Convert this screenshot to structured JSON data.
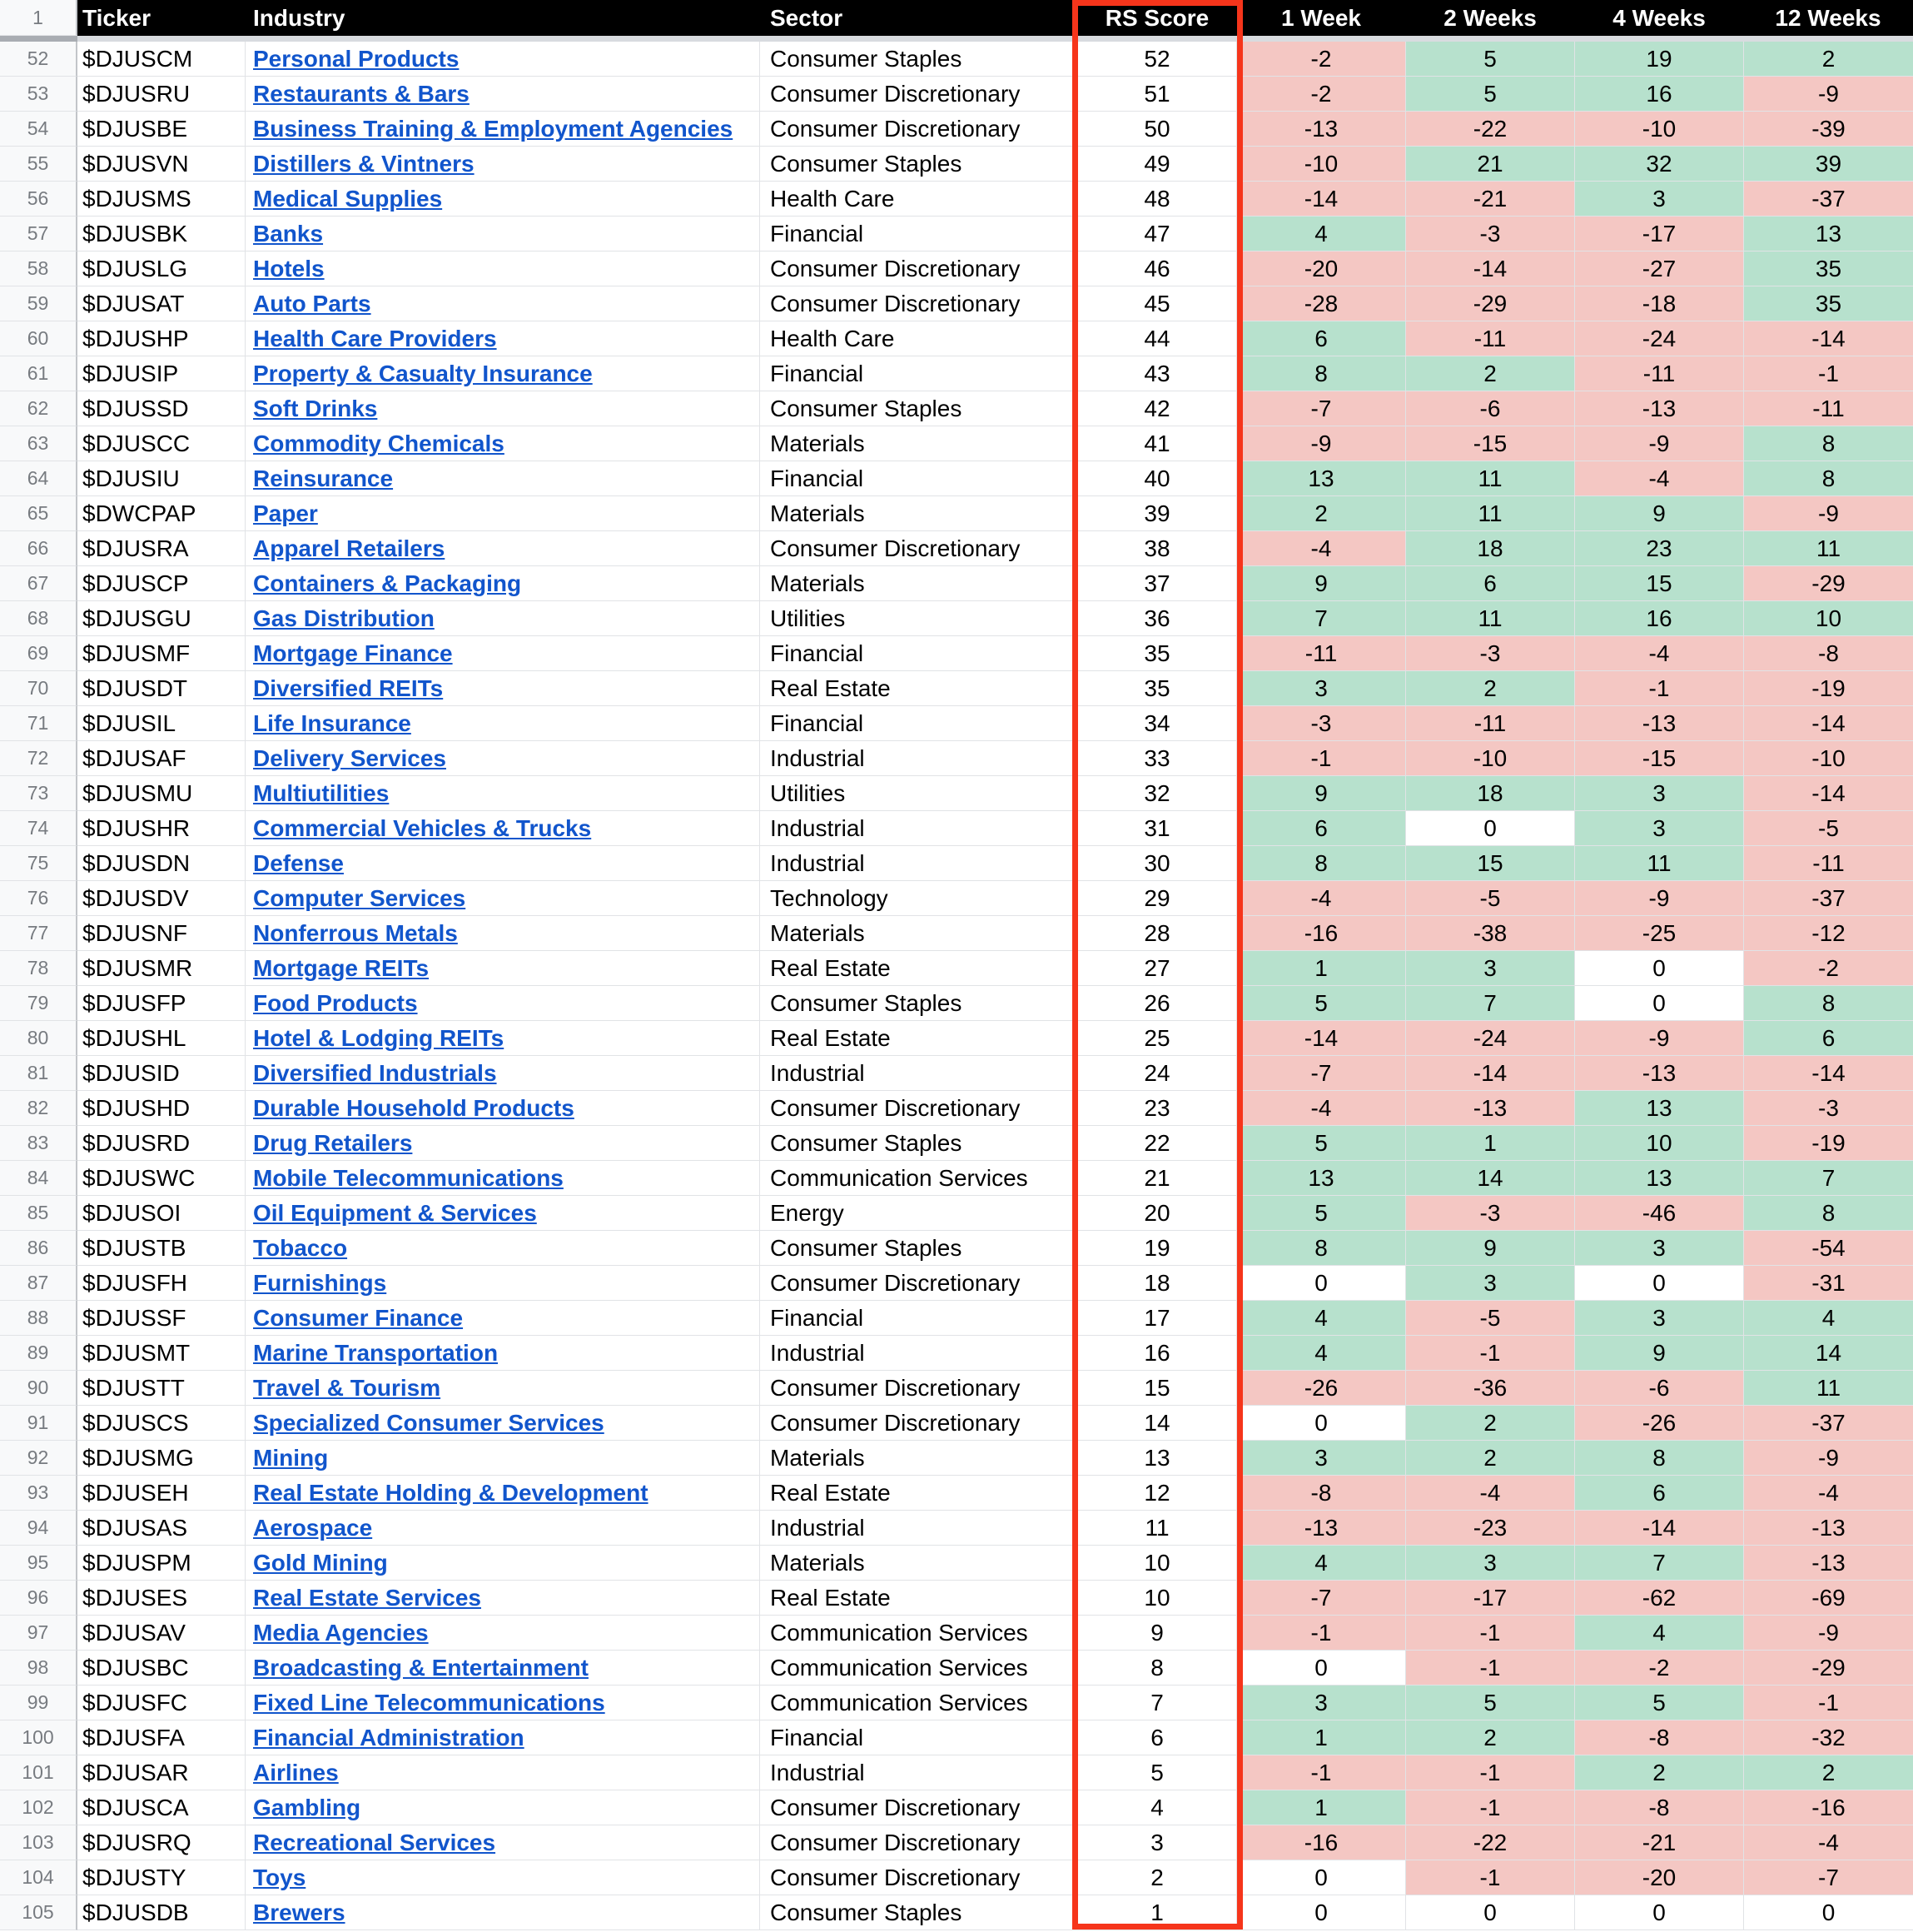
{
  "header": {
    "corner_row_number": "1",
    "columns": [
      {
        "key": "ticker",
        "label": "Ticker"
      },
      {
        "key": "industry",
        "label": "Industry"
      },
      {
        "key": "sector",
        "label": "Sector"
      },
      {
        "key": "rs",
        "label": "RS Score"
      },
      {
        "key": "w1",
        "label": "1 Week"
      },
      {
        "key": "w2",
        "label": "2 Weeks"
      },
      {
        "key": "w4",
        "label": "4 Weeks"
      },
      {
        "key": "w12",
        "label": "12 Weeks"
      }
    ]
  },
  "colors": {
    "positive_bg": "#b7e1cd",
    "negative_bg": "#f4c7c3",
    "zero_bg": "#ffffff",
    "link": "#1155cc",
    "rs_outline": "#f6351b",
    "gridline": "#e1e3e6"
  },
  "table": {
    "rows": [
      {
        "row": 52,
        "ticker": "$DJUSCM",
        "industry": "Personal Products",
        "sector": "Consumer Staples",
        "rs": 52,
        "w1": -2,
        "w2": 5,
        "w4": 19,
        "w12": 2
      },
      {
        "row": 53,
        "ticker": "$DJUSRU",
        "industry": "Restaurants & Bars",
        "sector": "Consumer Discretionary",
        "rs": 51,
        "w1": -2,
        "w2": 5,
        "w4": 16,
        "w12": -9
      },
      {
        "row": 54,
        "ticker": "$DJUSBE",
        "industry": "Business Training & Employment Agencies",
        "sector": "Consumer Discretionary",
        "rs": 50,
        "w1": -13,
        "w2": -22,
        "w4": -10,
        "w12": -39
      },
      {
        "row": 55,
        "ticker": "$DJUSVN",
        "industry": "Distillers & Vintners",
        "sector": "Consumer Staples",
        "rs": 49,
        "w1": -10,
        "w2": 21,
        "w4": 32,
        "w12": 39
      },
      {
        "row": 56,
        "ticker": "$DJUSMS",
        "industry": "Medical Supplies",
        "sector": "Health Care",
        "rs": 48,
        "w1": -14,
        "w2": -21,
        "w4": 3,
        "w12": -37
      },
      {
        "row": 57,
        "ticker": "$DJUSBK",
        "industry": "Banks",
        "sector": "Financial",
        "rs": 47,
        "w1": 4,
        "w2": -3,
        "w4": -17,
        "w12": 13
      },
      {
        "row": 58,
        "ticker": "$DJUSLG",
        "industry": "Hotels",
        "sector": "Consumer Discretionary",
        "rs": 46,
        "w1": -20,
        "w2": -14,
        "w4": -27,
        "w12": 35
      },
      {
        "row": 59,
        "ticker": "$DJUSAT",
        "industry": "Auto Parts",
        "sector": "Consumer Discretionary",
        "rs": 45,
        "w1": -28,
        "w2": -29,
        "w4": -18,
        "w12": 35
      },
      {
        "row": 60,
        "ticker": "$DJUSHP",
        "industry": "Health Care Providers",
        "sector": "Health Care",
        "rs": 44,
        "w1": 6,
        "w2": -11,
        "w4": -24,
        "w12": -14
      },
      {
        "row": 61,
        "ticker": "$DJUSIP",
        "industry": "Property & Casualty Insurance",
        "sector": "Financial",
        "rs": 43,
        "w1": 8,
        "w2": 2,
        "w4": -11,
        "w12": -1
      },
      {
        "row": 62,
        "ticker": "$DJUSSD",
        "industry": "Soft Drinks",
        "sector": "Consumer Staples",
        "rs": 42,
        "w1": -7,
        "w2": -6,
        "w4": -13,
        "w12": -11
      },
      {
        "row": 63,
        "ticker": "$DJUSCC",
        "industry": "Commodity Chemicals",
        "sector": "Materials",
        "rs": 41,
        "w1": -9,
        "w2": -15,
        "w4": -9,
        "w12": 8
      },
      {
        "row": 64,
        "ticker": "$DJUSIU",
        "industry": "Reinsurance",
        "sector": "Financial",
        "rs": 40,
        "w1": 13,
        "w2": 11,
        "w4": -4,
        "w12": 8
      },
      {
        "row": 65,
        "ticker": "$DWCPAP",
        "industry": "Paper",
        "sector": "Materials",
        "rs": 39,
        "w1": 2,
        "w2": 11,
        "w4": 9,
        "w12": -9
      },
      {
        "row": 66,
        "ticker": "$DJUSRA",
        "industry": "Apparel Retailers",
        "sector": "Consumer Discretionary",
        "rs": 38,
        "w1": -4,
        "w2": 18,
        "w4": 23,
        "w12": 11
      },
      {
        "row": 67,
        "ticker": "$DJUSCP",
        "industry": "Containers & Packaging",
        "sector": "Materials",
        "rs": 37,
        "w1": 9,
        "w2": 6,
        "w4": 15,
        "w12": -29
      },
      {
        "row": 68,
        "ticker": "$DJUSGU",
        "industry": "Gas Distribution",
        "sector": "Utilities",
        "rs": 36,
        "w1": 7,
        "w2": 11,
        "w4": 16,
        "w12": 10
      },
      {
        "row": 69,
        "ticker": "$DJUSMF",
        "industry": "Mortgage Finance",
        "sector": "Financial",
        "rs": 35,
        "w1": -11,
        "w2": -3,
        "w4": -4,
        "w12": -8
      },
      {
        "row": 70,
        "ticker": "$DJUSDT",
        "industry": "Diversified REITs",
        "sector": "Real Estate",
        "rs": 35,
        "w1": 3,
        "w2": 2,
        "w4": -1,
        "w12": -19
      },
      {
        "row": 71,
        "ticker": "$DJUSIL",
        "industry": "Life Insurance",
        "sector": "Financial",
        "rs": 34,
        "w1": -3,
        "w2": -11,
        "w4": -13,
        "w12": -14
      },
      {
        "row": 72,
        "ticker": "$DJUSAF",
        "industry": "Delivery Services",
        "sector": "Industrial",
        "rs": 33,
        "w1": -1,
        "w2": -10,
        "w4": -15,
        "w12": -10
      },
      {
        "row": 73,
        "ticker": "$DJUSMU",
        "industry": "Multiutilities",
        "sector": "Utilities",
        "rs": 32,
        "w1": 9,
        "w2": 18,
        "w4": 3,
        "w12": -14
      },
      {
        "row": 74,
        "ticker": "$DJUSHR",
        "industry": "Commercial Vehicles & Trucks",
        "sector": "Industrial",
        "rs": 31,
        "w1": 6,
        "w2": 0,
        "w4": 3,
        "w12": -5
      },
      {
        "row": 75,
        "ticker": "$DJUSDN",
        "industry": "Defense",
        "sector": "Industrial",
        "rs": 30,
        "w1": 8,
        "w2": 15,
        "w4": 11,
        "w12": -11
      },
      {
        "row": 76,
        "ticker": "$DJUSDV",
        "industry": "Computer Services",
        "sector": "Technology",
        "rs": 29,
        "w1": -4,
        "w2": -5,
        "w4": -9,
        "w12": -37
      },
      {
        "row": 77,
        "ticker": "$DJUSNF",
        "industry": "Nonferrous Metals",
        "sector": "Materials",
        "rs": 28,
        "w1": -16,
        "w2": -38,
        "w4": -25,
        "w12": -12
      },
      {
        "row": 78,
        "ticker": "$DJUSMR",
        "industry": "Mortgage REITs",
        "sector": "Real Estate",
        "rs": 27,
        "w1": 1,
        "w2": 3,
        "w4": 0,
        "w12": -2
      },
      {
        "row": 79,
        "ticker": "$DJUSFP",
        "industry": "Food Products",
        "sector": "Consumer Staples",
        "rs": 26,
        "w1": 5,
        "w2": 7,
        "w4": 0,
        "w12": 8
      },
      {
        "row": 80,
        "ticker": "$DJUSHL",
        "industry": "Hotel & Lodging REITs",
        "sector": "Real Estate",
        "rs": 25,
        "w1": -14,
        "w2": -24,
        "w4": -9,
        "w12": 6
      },
      {
        "row": 81,
        "ticker": "$DJUSID",
        "industry": "Diversified Industrials",
        "sector": "Industrial",
        "rs": 24,
        "w1": -7,
        "w2": -14,
        "w4": -13,
        "w12": -14
      },
      {
        "row": 82,
        "ticker": "$DJUSHD",
        "industry": "Durable Household Products",
        "sector": "Consumer Discretionary",
        "rs": 23,
        "w1": -4,
        "w2": -13,
        "w4": 13,
        "w12": -3
      },
      {
        "row": 83,
        "ticker": "$DJUSRD",
        "industry": "Drug Retailers",
        "sector": "Consumer Staples",
        "rs": 22,
        "w1": 5,
        "w2": 1,
        "w4": 10,
        "w12": -19
      },
      {
        "row": 84,
        "ticker": "$DJUSWC",
        "industry": "Mobile Telecommunications",
        "sector": "Communication Services",
        "rs": 21,
        "w1": 13,
        "w2": 14,
        "w4": 13,
        "w12": 7
      },
      {
        "row": 85,
        "ticker": "$DJUSOI",
        "industry": "Oil Equipment & Services",
        "sector": "Energy",
        "rs": 20,
        "w1": 5,
        "w2": -3,
        "w4": -46,
        "w12": 8
      },
      {
        "row": 86,
        "ticker": "$DJUSTB",
        "industry": "Tobacco",
        "sector": "Consumer Staples",
        "rs": 19,
        "w1": 8,
        "w2": 9,
        "w4": 3,
        "w12": -54
      },
      {
        "row": 87,
        "ticker": "$DJUSFH",
        "industry": "Furnishings",
        "sector": "Consumer Discretionary",
        "rs": 18,
        "w1": 0,
        "w2": 3,
        "w4": 0,
        "w12": -31
      },
      {
        "row": 88,
        "ticker": "$DJUSSF",
        "industry": "Consumer Finance",
        "sector": "Financial",
        "rs": 17,
        "w1": 4,
        "w2": -5,
        "w4": 3,
        "w12": 4
      },
      {
        "row": 89,
        "ticker": "$DJUSMT",
        "industry": "Marine Transportation",
        "sector": "Industrial",
        "rs": 16,
        "w1": 4,
        "w2": -1,
        "w4": 9,
        "w12": 14
      },
      {
        "row": 90,
        "ticker": "$DJUSTT",
        "industry": "Travel & Tourism",
        "sector": "Consumer Discretionary",
        "rs": 15,
        "w1": -26,
        "w2": -36,
        "w4": -6,
        "w12": 11
      },
      {
        "row": 91,
        "ticker": "$DJUSCS",
        "industry": "Specialized Consumer Services",
        "sector": "Consumer Discretionary",
        "rs": 14,
        "w1": 0,
        "w2": 2,
        "w4": -26,
        "w12": -37
      },
      {
        "row": 92,
        "ticker": "$DJUSMG",
        "industry": "Mining",
        "sector": "Materials",
        "rs": 13,
        "w1": 3,
        "w2": 2,
        "w4": 8,
        "w12": -9
      },
      {
        "row": 93,
        "ticker": "$DJUSEH",
        "industry": "Real Estate Holding & Development",
        "sector": "Real Estate",
        "rs": 12,
        "w1": -8,
        "w2": -4,
        "w4": 6,
        "w12": -4
      },
      {
        "row": 94,
        "ticker": "$DJUSAS",
        "industry": "Aerospace",
        "sector": "Industrial",
        "rs": 11,
        "w1": -13,
        "w2": -23,
        "w4": -14,
        "w12": -13
      },
      {
        "row": 95,
        "ticker": "$DJUSPM",
        "industry": "Gold Mining",
        "sector": "Materials",
        "rs": 10,
        "w1": 4,
        "w2": 3,
        "w4": 7,
        "w12": -13
      },
      {
        "row": 96,
        "ticker": "$DJUSES",
        "industry": "Real Estate Services",
        "sector": "Real Estate",
        "rs": 10,
        "w1": -7,
        "w2": -17,
        "w4": -62,
        "w12": -69
      },
      {
        "row": 97,
        "ticker": "$DJUSAV",
        "industry": "Media Agencies",
        "sector": "Communication Services",
        "rs": 9,
        "w1": -1,
        "w2": -1,
        "w4": 4,
        "w12": -9
      },
      {
        "row": 98,
        "ticker": "$DJUSBC",
        "industry": "Broadcasting & Entertainment",
        "sector": "Communication Services",
        "rs": 8,
        "w1": 0,
        "w2": -1,
        "w4": -2,
        "w12": -29
      },
      {
        "row": 99,
        "ticker": "$DJUSFC",
        "industry": "Fixed Line Telecommunications",
        "sector": "Communication Services",
        "rs": 7,
        "w1": 3,
        "w2": 5,
        "w4": 5,
        "w12": -1
      },
      {
        "row": 100,
        "ticker": "$DJUSFA",
        "industry": "Financial Administration",
        "sector": "Financial",
        "rs": 6,
        "w1": 1,
        "w2": 2,
        "w4": -8,
        "w12": -32
      },
      {
        "row": 101,
        "ticker": "$DJUSAR",
        "industry": "Airlines",
        "sector": "Industrial",
        "rs": 5,
        "w1": -1,
        "w2": -1,
        "w4": 2,
        "w12": 2
      },
      {
        "row": 102,
        "ticker": "$DJUSCA",
        "industry": "Gambling",
        "sector": "Consumer Discretionary",
        "rs": 4,
        "w1": 1,
        "w2": -1,
        "w4": -8,
        "w12": -16
      },
      {
        "row": 103,
        "ticker": "$DJUSRQ",
        "industry": "Recreational Services",
        "sector": "Consumer Discretionary",
        "rs": 3,
        "w1": -16,
        "w2": -22,
        "w4": -21,
        "w12": -4
      },
      {
        "row": 104,
        "ticker": "$DJUSTY",
        "industry": "Toys",
        "sector": "Consumer Discretionary",
        "rs": 2,
        "w1": 0,
        "w2": -1,
        "w4": -20,
        "w12": -7
      },
      {
        "row": 105,
        "ticker": "$DJUSDB",
        "industry": "Brewers",
        "sector": "Consumer Staples",
        "rs": 1,
        "w1": 0,
        "w2": 0,
        "w4": 0,
        "w12": 0
      }
    ]
  }
}
